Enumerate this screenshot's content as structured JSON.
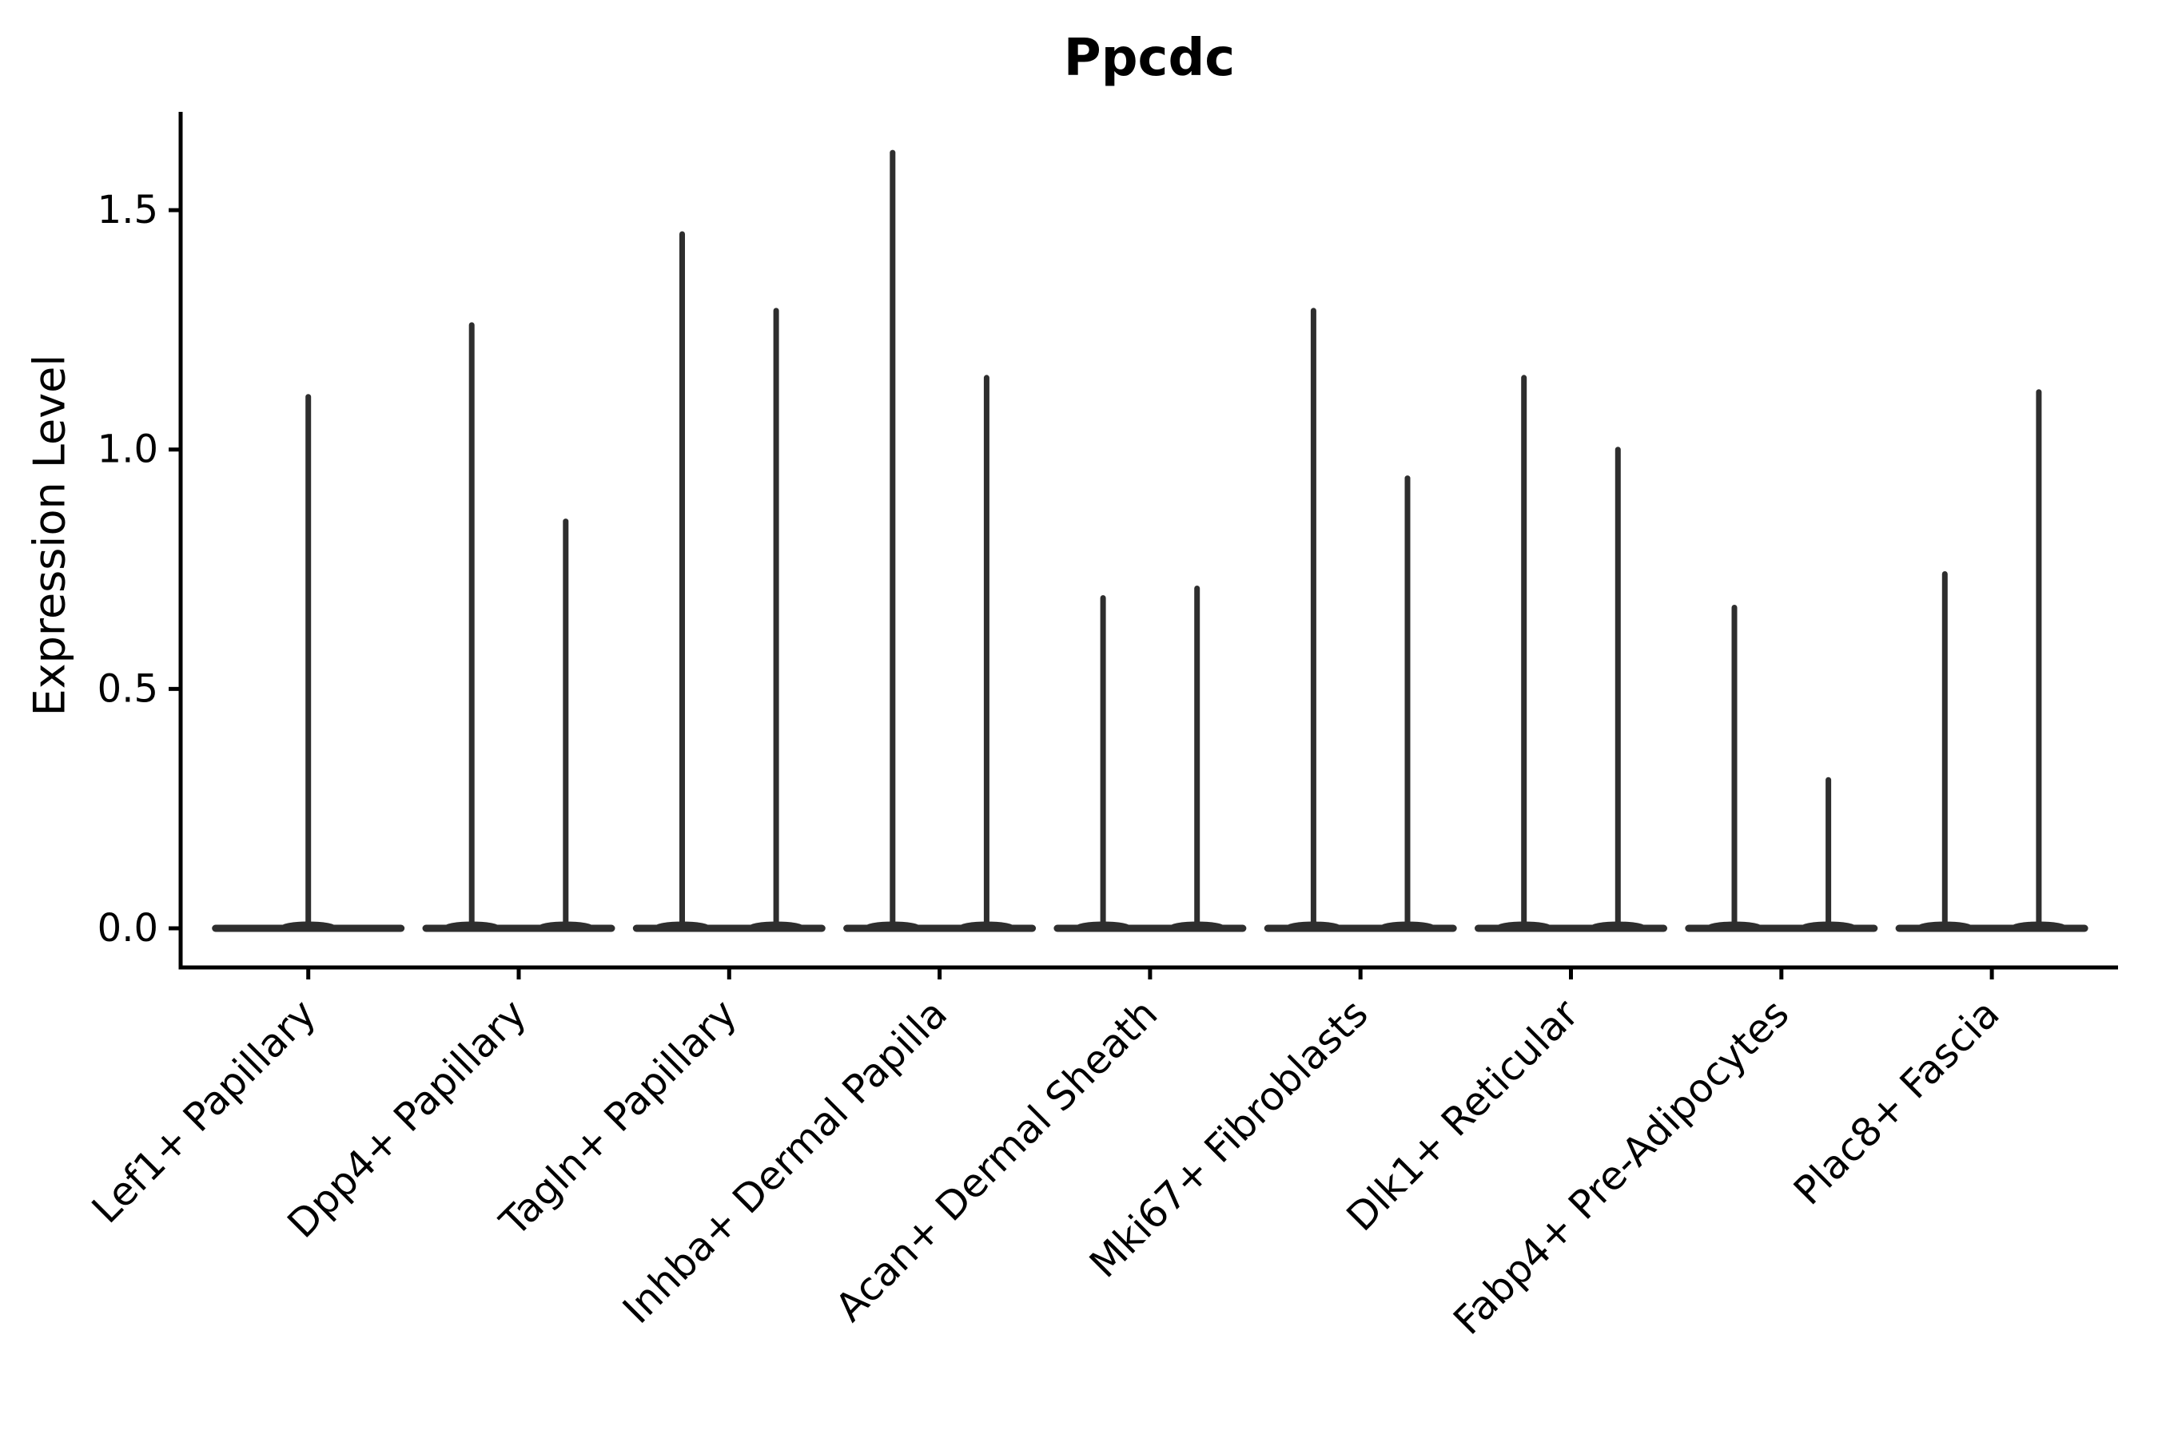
{
  "page": {
    "background": "#ffffff"
  },
  "chart_data": {
    "type": "violin",
    "title": "Ppcdc",
    "ylabel": "Expression Level",
    "xlabel": "",
    "legend": null,
    "grid": false,
    "ylim": [
      0,
      1.7
    ],
    "yticks": [
      {
        "label": "0.0",
        "value": 0.0
      },
      {
        "label": "0.5",
        "value": 0.5
      },
      {
        "label": "1.0",
        "value": 1.0
      },
      {
        "label": "1.5",
        "value": 1.5
      }
    ],
    "categories": [
      "Lef1+ Papillary",
      "Dpp4+ Papillary",
      "Tagln+ Papillary",
      "Inhba+ Dermal Papilla",
      "Acan+ Dermal Sheath",
      "Mki67+ Fibroblasts",
      "Dlk1+ Reticular",
      "Fabp4+ Pre-Adipocytes",
      "Plac8+ Fascia"
    ],
    "violins": [
      {
        "category": "Lef1+ Papillary",
        "max_expression": [
          1.11
        ]
      },
      {
        "category": "Dpp4+ Papillary",
        "max_expression": [
          1.26,
          0.85
        ]
      },
      {
        "category": "Tagln+ Papillary",
        "max_expression": [
          1.45,
          1.29
        ]
      },
      {
        "category": "Inhba+ Dermal Papilla",
        "max_expression": [
          1.62,
          1.15
        ]
      },
      {
        "category": "Acan+ Dermal Sheath",
        "max_expression": [
          0.69,
          0.71
        ]
      },
      {
        "category": "Mki67+ Fibroblasts",
        "max_expression": [
          1.29,
          0.94
        ]
      },
      {
        "category": "Dlk1+ Reticular",
        "max_expression": [
          1.15,
          1.0
        ]
      },
      {
        "category": "Fabp4+ Pre-Adipocytes",
        "max_expression": [
          0.67,
          0.31
        ]
      },
      {
        "category": "Plac8+ Fascia",
        "max_expression": [
          0.74,
          1.12
        ]
      }
    ],
    "description": "Violin plot of Ppcdc expression per fibroblast cluster; density is concentrated at 0 (flat dark baseline) with thin vertical tails reaching each violin's maximum expression value.",
    "colors": {
      "violin": "#2e2e2e",
      "axis": "#000000",
      "text": "#000000"
    }
  }
}
